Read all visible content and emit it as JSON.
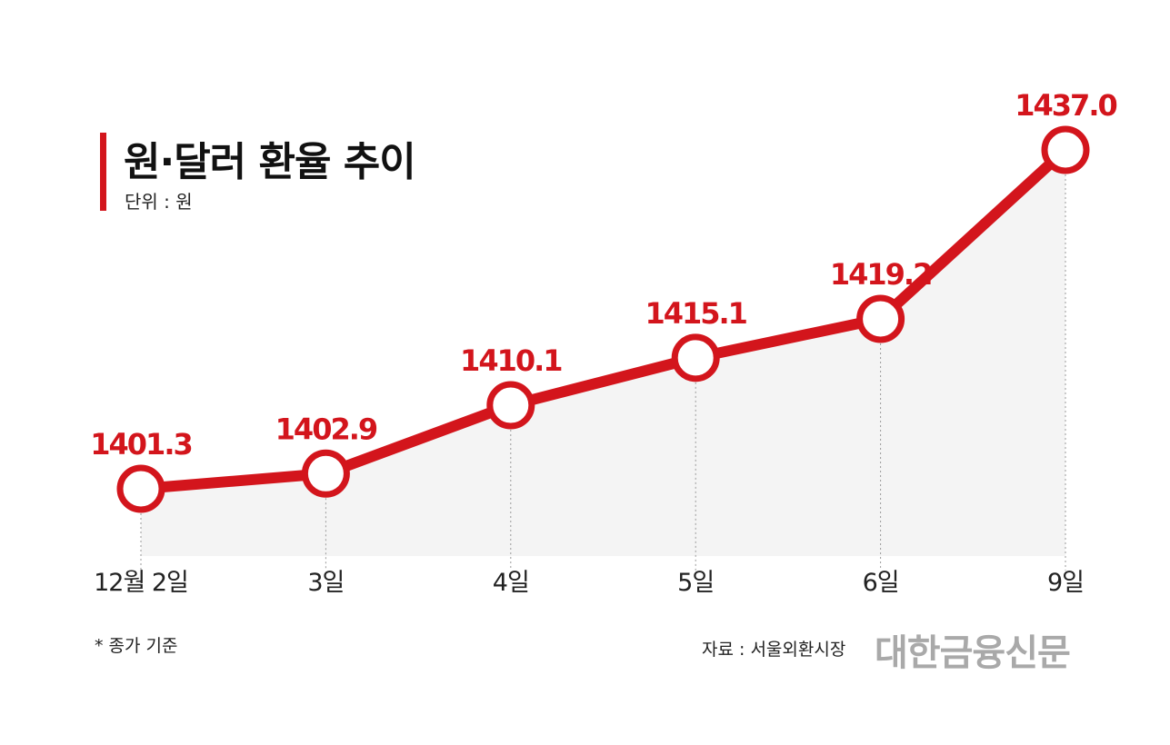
{
  "header": {
    "title": "원·달러 환율 추이",
    "unit": "단위 : 원"
  },
  "footer": {
    "note": "* 종가 기준",
    "source": "자료 : 서울외환시장",
    "brand": "대한금융신문"
  },
  "colors": {
    "accent": "#d3151c",
    "area": "#f4f4f4",
    "text": "#111111"
  },
  "chart_data": {
    "type": "line",
    "title": "원·달러 환율 추이",
    "categories": [
      "12월 2일",
      "3일",
      "4일",
      "5일",
      "6일",
      "9일"
    ],
    "series": [
      {
        "values": [
          1401.3,
          1402.9,
          1410.1,
          1415.1,
          1419.2,
          1437.0
        ]
      }
    ],
    "value_labels": [
      "1401.3",
      "1402.9",
      "1410.1",
      "1415.1",
      "1419.2",
      "1437.0"
    ],
    "ylabel": "단위 : 원",
    "ylim": [
      1390,
      1440
    ],
    "grid": false,
    "legend": "none"
  }
}
